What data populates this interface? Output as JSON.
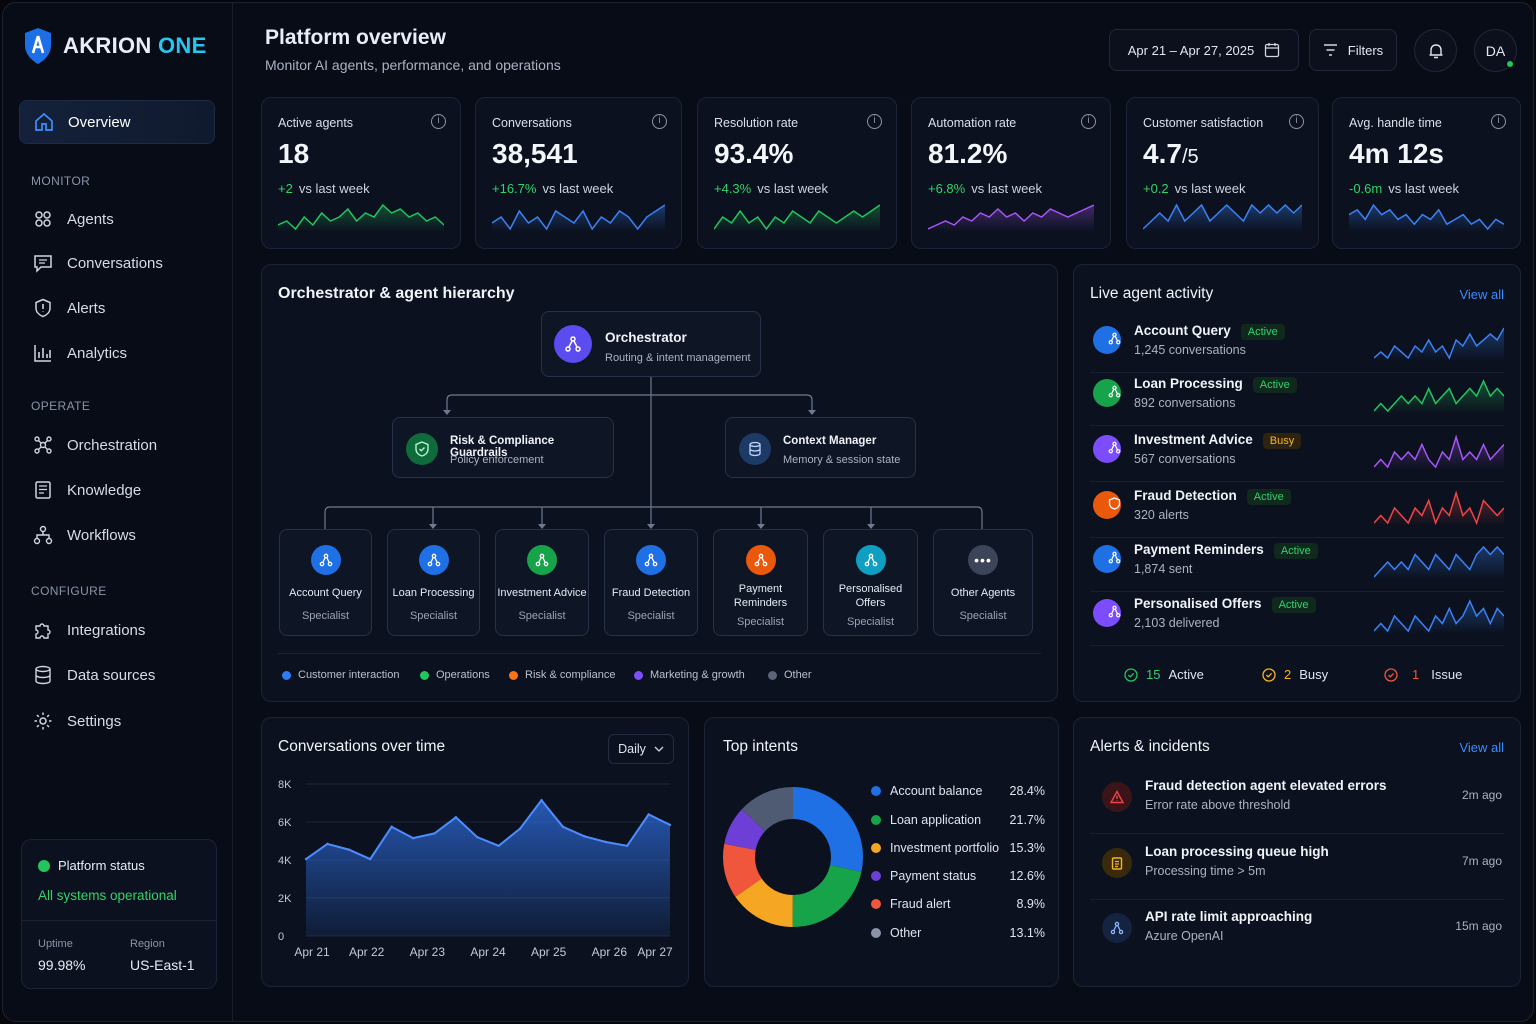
{
  "brand": {
    "name": "AKRION",
    "suffix": "ONE"
  },
  "nav": {
    "overview": "Overview",
    "monitor_label": "MONITOR",
    "agents": "Agents",
    "conversations": "Conversations",
    "alerts": "Alerts",
    "analytics": "Analytics",
    "operate_label": "OPERATE",
    "orchestration": "Orchestration",
    "knowledge": "Knowledge",
    "workflows": "Workflows",
    "configure_label": "CONFIGURE",
    "integrations": "Integrations",
    "data_sources": "Data sources",
    "settings": "Settings"
  },
  "platform_status": {
    "title": "Platform status",
    "message": "All systems operational",
    "uptime_label": "Uptime",
    "uptime": "99.98%",
    "region_label": "Region",
    "region": "US-East-1"
  },
  "header": {
    "title": "Platform overview",
    "subtitle": "Monitor AI agents, performance, and operations",
    "date_range": "Apr 21 – Apr 27, 2025",
    "filters": "Filters",
    "avatar": "DA"
  },
  "kpis": [
    {
      "label": "Active agents",
      "value": "18",
      "unit": "",
      "delta": "+2",
      "delta_text": "vs last week",
      "delta_color": "#2fd46b",
      "spark_color": "#22c55e",
      "spark": [
        4,
        5,
        3,
        6,
        4,
        7,
        5,
        6,
        8,
        5,
        7,
        6,
        9,
        7,
        8,
        6,
        7,
        5,
        6,
        4
      ]
    },
    {
      "label": "Conversations",
      "value": "38,541",
      "unit": "",
      "delta": "+16.7%",
      "delta_text": "vs last week",
      "delta_color": "#2fd46b",
      "spark_color": "#3b82f6",
      "spark": [
        5,
        6,
        4,
        7,
        5,
        6,
        4,
        7,
        6,
        5,
        7,
        4,
        6,
        5,
        7,
        6,
        4,
        6,
        7,
        8
      ]
    },
    {
      "label": "Resolution rate",
      "value": "93.4%",
      "unit": "",
      "delta": "+4.3%",
      "delta_text": "vs last week",
      "delta_color": "#2fd46b",
      "spark_color": "#22c55e",
      "spark": [
        4,
        6,
        5,
        7,
        5,
        6,
        4,
        6,
        5,
        7,
        6,
        5,
        7,
        6,
        5,
        6,
        7,
        6,
        7,
        8
      ]
    },
    {
      "label": "Automation rate",
      "value": "81.2%",
      "unit": "",
      "delta": "+6.8%",
      "delta_text": "vs last week",
      "delta_color": "#2fd46b",
      "spark_color": "#a855f7",
      "spark": [
        3,
        4,
        5,
        4,
        6,
        5,
        7,
        6,
        8,
        6,
        7,
        5,
        7,
        6,
        8,
        7,
        6,
        7,
        8,
        9
      ]
    },
    {
      "label": "Customer satisfaction",
      "value": "4.7",
      "unit": "/5",
      "delta": "+0.2",
      "delta_text": "vs last week",
      "delta_color": "#2fd46b",
      "spark_color": "#3b82f6",
      "spark": [
        4,
        5,
        6,
        5,
        7,
        5,
        6,
        7,
        5,
        6,
        7,
        6,
        5,
        7,
        6,
        7,
        6,
        7,
        6,
        7
      ]
    },
    {
      "label": "Avg. handle time",
      "value": "4m 12s",
      "unit": "",
      "delta": "-0.6m",
      "delta_text": "vs last week",
      "delta_color": "#2fd46b",
      "spark_color": "#3b82f6",
      "spark": [
        6,
        7,
        5,
        8,
        6,
        7,
        5,
        6,
        4,
        6,
        5,
        7,
        4,
        5,
        6,
        4,
        5,
        3,
        5,
        4
      ]
    }
  ],
  "hierarchy": {
    "title": "Orchestrator & agent hierarchy",
    "orchestrator": {
      "name": "Orchestrator",
      "desc": "Routing & intent management"
    },
    "guardrails": {
      "name": "Risk & Compliance Guardrails",
      "desc": "Policy enforcement"
    },
    "context": {
      "name": "Context Manager",
      "desc": "Memory & session state"
    },
    "specialists": [
      {
        "line1": "Account Query",
        "line2": "",
        "role": "Specialist",
        "color": "#1f6fe5"
      },
      {
        "line1": "Loan Processing",
        "line2": "",
        "role": "Specialist",
        "color": "#1f6fe5"
      },
      {
        "line1": "Investment Advice",
        "line2": "",
        "role": "Specialist",
        "color": "#16a34a"
      },
      {
        "line1": "Fraud Detection",
        "line2": "",
        "role": "Specialist",
        "color": "#1f6fe5"
      },
      {
        "line1": "Payment",
        "line2": "Reminders",
        "role": "Specialist",
        "color": "#ea580c"
      },
      {
        "line1": "Personalised",
        "line2": "Offers",
        "role": "Specialist",
        "color": "#0e9fc2"
      },
      {
        "line1": "Other Agents",
        "line2": "",
        "role": "Specialist",
        "color": "#3b4458"
      }
    ],
    "legend": [
      {
        "label": "Customer interaction",
        "color": "#2f7bf5"
      },
      {
        "label": "Operations",
        "color": "#22c55e"
      },
      {
        "label": "Risk & compliance",
        "color": "#f97316"
      },
      {
        "label": "Marketing & growth",
        "color": "#7c4dff"
      },
      {
        "label": "Other",
        "color": "#5b6478"
      }
    ]
  },
  "live_activity": {
    "title": "Live agent activity",
    "view_all": "View all",
    "agents": [
      {
        "name": "Account Query",
        "status": "Active",
        "detail": "1,245 conversations",
        "color": "#1f6fe5",
        "spark_color": "#3b82f6",
        "spark": [
          4,
          5,
          4,
          6,
          5,
          4,
          6,
          5,
          7,
          5,
          6,
          4,
          7,
          6,
          8,
          6,
          7,
          8,
          7,
          9
        ]
      },
      {
        "name": "Loan Processing",
        "status": "Active",
        "detail": "892 conversations",
        "color": "#16a34a",
        "spark_color": "#22c55e",
        "spark": [
          4,
          5,
          4,
          5,
          6,
          5,
          6,
          5,
          7,
          5,
          6,
          7,
          5,
          6,
          7,
          6,
          8,
          6,
          7,
          6
        ]
      },
      {
        "name": "Investment Advice",
        "status": "Busy",
        "detail": "567 conversations",
        "color": "#7c4dff",
        "spark_color": "#a855f7",
        "spark": [
          4,
          5,
          4,
          6,
          5,
          6,
          5,
          7,
          5,
          4,
          6,
          5,
          8,
          5,
          6,
          5,
          7,
          5,
          6,
          7
        ]
      },
      {
        "name": "Fraud Detection",
        "status": "Active",
        "detail": "320 alerts",
        "color": "#ea580c",
        "spark_color": "#ef4444",
        "spark": [
          5,
          6,
          5,
          7,
          6,
          5,
          7,
          6,
          8,
          5,
          7,
          6,
          9,
          6,
          7,
          5,
          8,
          7,
          6,
          7
        ]
      },
      {
        "name": "Payment Reminders",
        "status": "Active",
        "detail": "1,874 sent",
        "color": "#1f6fe5",
        "spark_color": "#3b82f6",
        "spark": [
          4,
          5,
          6,
          5,
          6,
          5,
          7,
          6,
          5,
          7,
          6,
          5,
          7,
          6,
          5,
          7,
          8,
          7,
          8,
          7
        ]
      },
      {
        "name": "Personalised Offers",
        "status": "Active",
        "detail": "2,103 delivered",
        "color": "#7c4dff",
        "spark_color": "#3b82f6",
        "spark": [
          4,
          5,
          4,
          6,
          5,
          4,
          6,
          5,
          4,
          6,
          5,
          7,
          5,
          6,
          8,
          6,
          7,
          5,
          7,
          6
        ]
      }
    ],
    "summary": {
      "active_count": "15",
      "active_label": "Active",
      "busy_count": "2",
      "busy_label": "Busy",
      "issue_count": "1",
      "issue_label": "Issue"
    }
  },
  "conversations_chart": {
    "title": "Conversations over time",
    "granularity": "Daily"
  },
  "chart_data": [
    {
      "type": "area",
      "title": "Conversations over time",
      "xlabel": "",
      "ylabel": "",
      "x_labels": [
        "Apr 21",
        "Apr 22",
        "Apr 23",
        "Apr 24",
        "Apr 25",
        "Apr 26",
        "Apr 27"
      ],
      "y_ticks": [
        "8K",
        "6K",
        "4K",
        "2K",
        "0"
      ],
      "ylim": [
        0,
        8000
      ],
      "values": [
        4050,
        4850,
        4550,
        4050,
        5750,
        5150,
        5400,
        6250,
        5200,
        4750,
        5650,
        7150,
        5750,
        5250,
        4950,
        4750,
        6400,
        5850
      ],
      "color": "#2f6fe4"
    },
    {
      "type": "pie",
      "title": "Top intents",
      "slices": [
        {
          "label": "Account balance",
          "value": 28.4,
          "color": "#1f6fe5"
        },
        {
          "label": "Loan application",
          "value": 21.7,
          "color": "#16a34a"
        },
        {
          "label": "Investment portfolio",
          "value": 15.3,
          "color": "#f5a623"
        },
        {
          "label": "Payment status",
          "value": 12.6,
          "color": "#f0563c"
        },
        {
          "label": "Fraud alert",
          "value": 8.9,
          "color": "#6d3fd6"
        },
        {
          "label": "Other",
          "value": 13.1,
          "color": "#4f5b73"
        }
      ]
    }
  ],
  "intents": {
    "title": "Top intents",
    "items": [
      {
        "label": "Account balance",
        "pct": "28.4%",
        "color": "#1f6fe5"
      },
      {
        "label": "Loan application",
        "pct": "21.7%",
        "color": "#16a34a"
      },
      {
        "label": "Investment portfolio",
        "pct": "15.3%",
        "color": "#f5a623"
      },
      {
        "label": "Payment status",
        "pct": "12.6%",
        "color": "#6d3fd6"
      },
      {
        "label": "Fraud alert",
        "pct": "8.9%",
        "color": "#f0563c"
      },
      {
        "label": "Other",
        "pct": "13.1%",
        "color": "#8a94a8"
      }
    ]
  },
  "alerts": {
    "title": "Alerts & incidents",
    "view_all": "View all",
    "items": [
      {
        "title": "Fraud detection agent elevated errors",
        "desc": "Error rate above threshold",
        "time": "2m ago",
        "color": "#3a1418",
        "fg": "#ef4444"
      },
      {
        "title": "Loan processing queue high",
        "desc": "Processing time > 5m",
        "time": "7m ago",
        "color": "#3a2a0c",
        "fg": "#f5b324"
      },
      {
        "title": "API rate limit approaching",
        "desc": "Azure OpenAI",
        "time": "15m ago",
        "color": "#14233f",
        "fg": "#8fb4ff"
      }
    ]
  }
}
